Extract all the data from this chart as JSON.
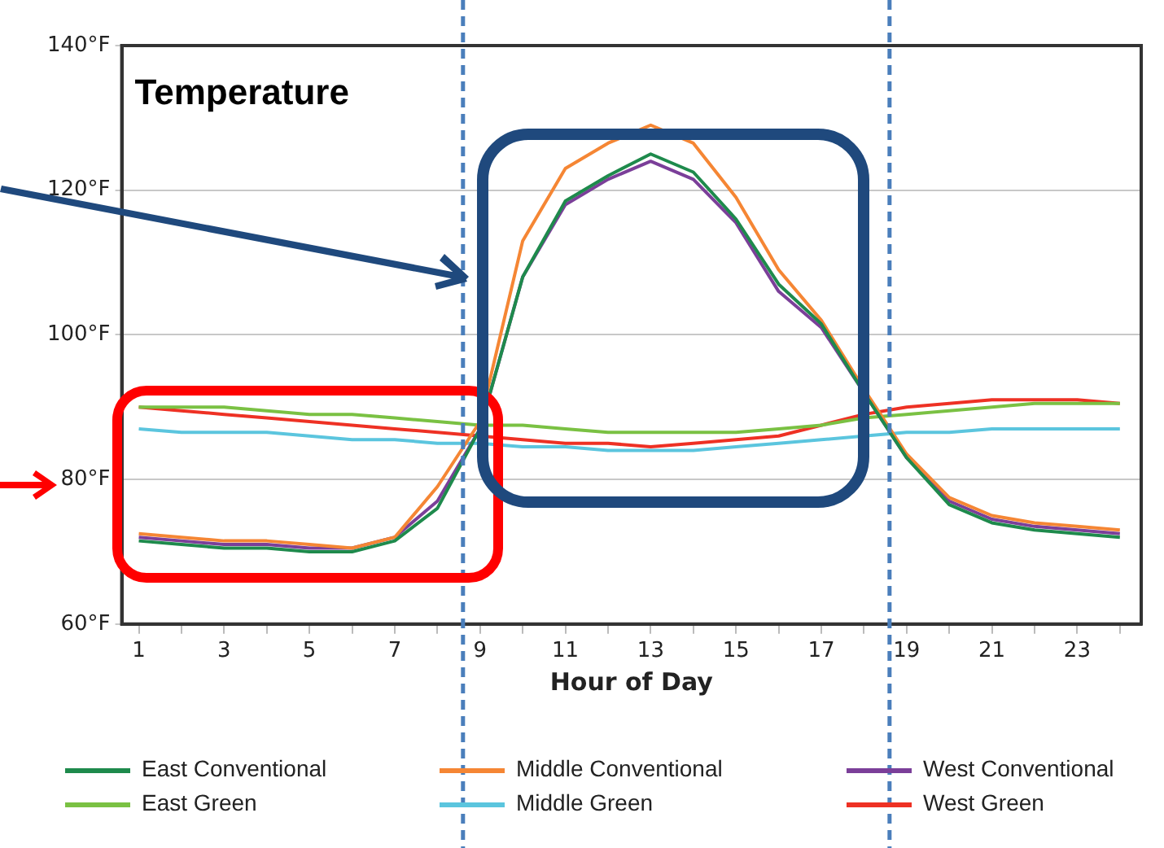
{
  "chart_data": {
    "type": "line",
    "title": "Temperature",
    "xlabel": "Hour of Day",
    "x": [
      1,
      2,
      3,
      4,
      5,
      6,
      7,
      8,
      9,
      10,
      11,
      12,
      13,
      14,
      15,
      16,
      17,
      18,
      19,
      20,
      21,
      22,
      23,
      24
    ],
    "xlim": [
      0.6,
      24.5
    ],
    "xticks": [
      1,
      {
        "value": 2,
        "label": null
      },
      3,
      {
        "value": 4,
        "label": null
      },
      5,
      {
        "value": 6,
        "label": null
      },
      7,
      {
        "value": 8,
        "label": null
      },
      9,
      {
        "value": 10,
        "label": null
      },
      11,
      {
        "value": 12,
        "label": null
      },
      13,
      {
        "value": 14,
        "label": null
      },
      15,
      {
        "value": 16,
        "label": null
      },
      17,
      {
        "value": 18,
        "label": null
      },
      19,
      {
        "value": 20,
        "label": null
      },
      21,
      {
        "value": 22,
        "label": null
      },
      23,
      {
        "value": 24,
        "label": null
      }
    ],
    "ylim": [
      60,
      140
    ],
    "yticks": [
      {
        "value": 60,
        "label": "60°F"
      },
      {
        "value": 80,
        "label": "80°F"
      },
      {
        "value": 100,
        "label": "100°F"
      },
      {
        "value": 120,
        "label": "120°F"
      },
      {
        "value": 140,
        "label": "140°F"
      }
    ],
    "series": [
      {
        "name": "East Conventional",
        "color": "#1e8a4c",
        "values": [
          71.5,
          71,
          70.5,
          70.5,
          70,
          70,
          71.5,
          76,
          87,
          108,
          118.5,
          122,
          125,
          122.5,
          116,
          107,
          101.5,
          92,
          83,
          76.5,
          74,
          73,
          72.5,
          72
        ]
      },
      {
        "name": "Middle Conventional",
        "color": "#f58634",
        "values": [
          72.5,
          72,
          71.5,
          71.5,
          71,
          70.5,
          72,
          79,
          88,
          113,
          123,
          126.5,
          129,
          126.5,
          119,
          109,
          102,
          92.5,
          83.5,
          77.5,
          75,
          74,
          73.5,
          73
        ]
      },
      {
        "name": "West Conventional",
        "color": "#7b3f99",
        "values": [
          72,
          71.5,
          71,
          71,
          70.5,
          70.5,
          72,
          77,
          87,
          108,
          118,
          121.5,
          124,
          121.5,
          115.5,
          106,
          101,
          92,
          83,
          77,
          74.5,
          73.5,
          73,
          72.5
        ]
      },
      {
        "name": "East Green",
        "color": "#7ac143",
        "values": [
          90,
          90,
          90,
          89.5,
          89,
          89,
          88.5,
          88,
          87.5,
          87.5,
          87,
          86.5,
          86.5,
          86.5,
          86.5,
          87,
          87.5,
          88.5,
          89,
          89.5,
          90,
          90.5,
          90.5,
          90.5
        ]
      },
      {
        "name": "Middle Green",
        "color": "#5bc5de",
        "values": [
          87,
          86.5,
          86.5,
          86.5,
          86,
          85.5,
          85.5,
          85,
          85,
          84.5,
          84.5,
          84,
          84,
          84,
          84.5,
          85,
          85.5,
          86,
          86.5,
          86.5,
          87,
          87,
          87,
          87
        ]
      },
      {
        "name": "West Green",
        "color": "#ee3124",
        "values": [
          90,
          89.5,
          89,
          88.5,
          88,
          87.5,
          87,
          86.5,
          86,
          85.5,
          85,
          85,
          84.5,
          85,
          85.5,
          86,
          87.5,
          89,
          90,
          90.5,
          91,
          91,
          91,
          90.5
        ]
      }
    ],
    "ref_lines": [
      {
        "axis": "x",
        "value": 8.6,
        "label": null,
        "color": "#4a7ebb",
        "line_style": "dashed"
      },
      {
        "axis": "x",
        "value": 18.6,
        "label": null,
        "color": "#4a7ebb",
        "line_style": "dashed"
      }
    ],
    "grid": "y",
    "legend": "bottom",
    "marker": "none",
    "line_style": "solid"
  }
}
